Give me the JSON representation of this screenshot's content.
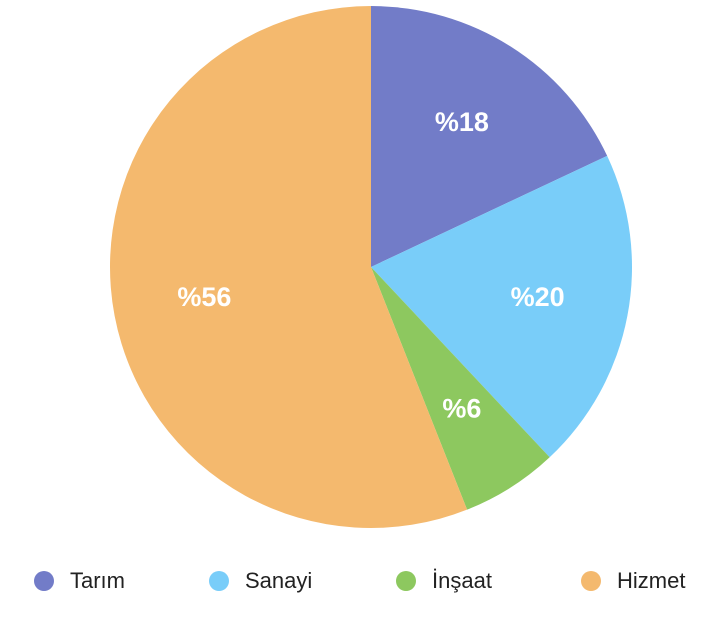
{
  "chart_data": {
    "type": "pie",
    "categories": [
      "Tarım",
      "Sanayi",
      "İnşaat",
      "Hizmet"
    ],
    "values": [
      18,
      20,
      6,
      56
    ],
    "value_labels": [
      "%18",
      "%20",
      "%6",
      "%56"
    ],
    "colors": [
      "#727cc8",
      "#79cdf9",
      "#8dc85f",
      "#f4b96e"
    ],
    "legend": "bottom"
  }
}
